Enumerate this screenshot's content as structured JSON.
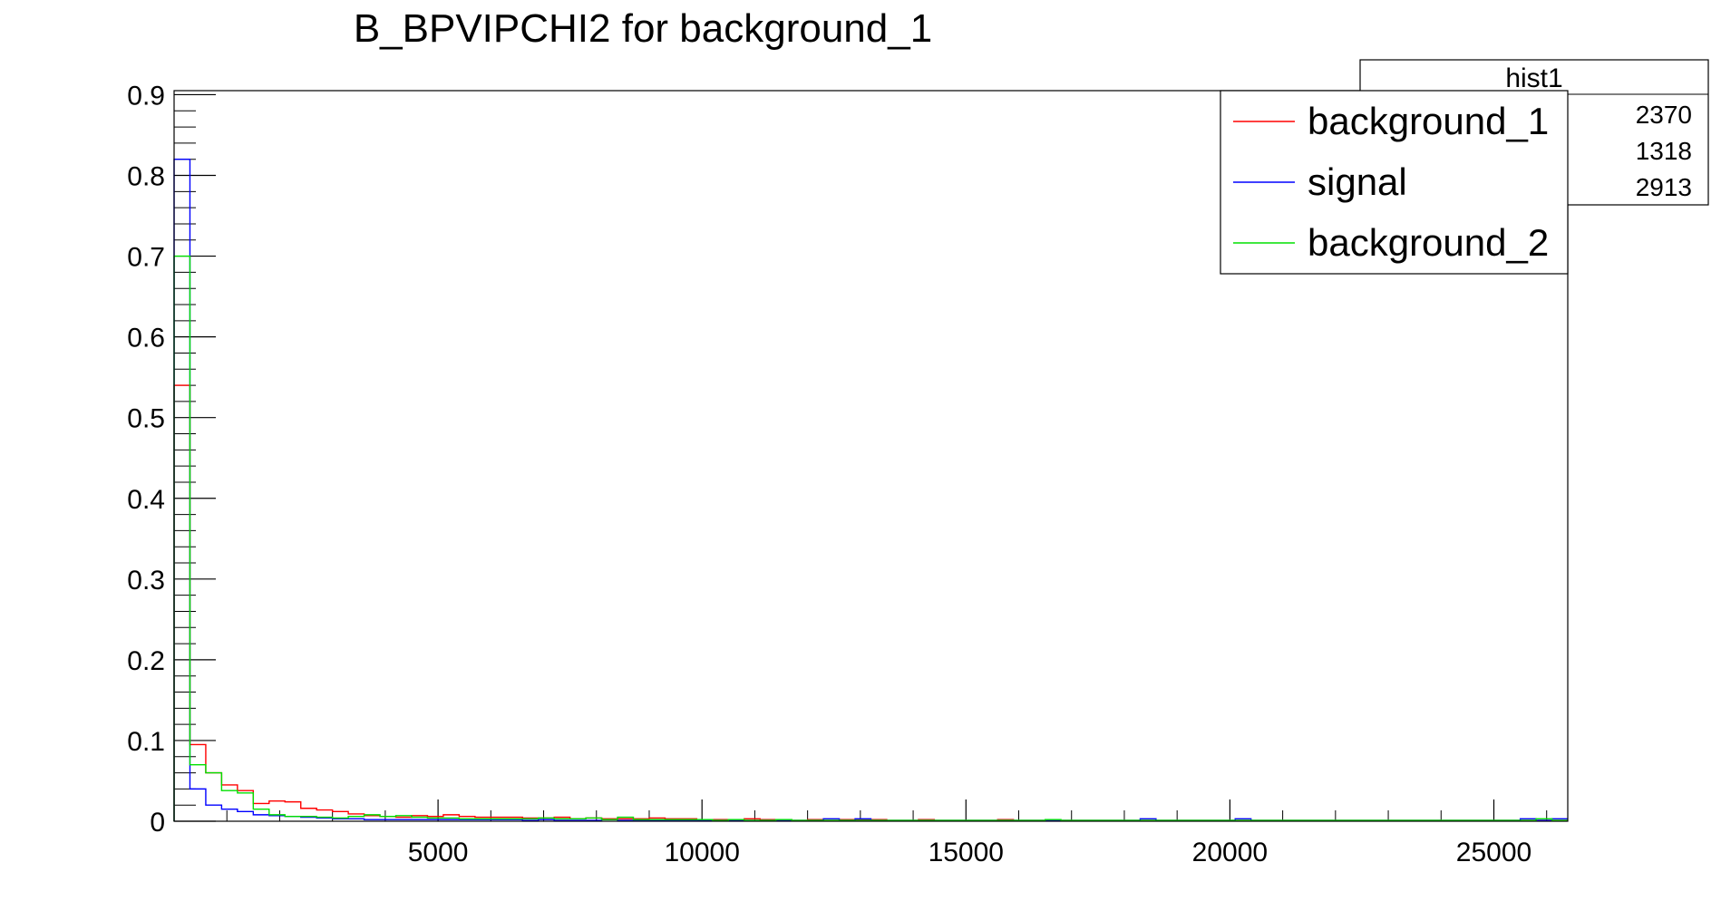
{
  "chart_data": {
    "type": "line",
    "title": "B_BPVIPCHI2 for background_1",
    "xlabel": "",
    "ylabel": "",
    "xlim": [
      0,
      26400
    ],
    "ylim": [
      0,
      0.905
    ],
    "bin_width": 300,
    "x_ticks": [
      5000,
      10000,
      15000,
      20000,
      25000
    ],
    "y_ticks": [
      0,
      0.1,
      0.2,
      0.3,
      0.4,
      0.5,
      0.6,
      0.7,
      0.8,
      0.9
    ],
    "grid": false,
    "legend_position": "top-right",
    "stats_box": {
      "title": "hist1",
      "values": [
        "2370",
        "1318",
        "2913"
      ]
    },
    "series": [
      {
        "name": "background_1",
        "color": "#ff0000",
        "values": [
          0.54,
          0.095,
          0.06,
          0.045,
          0.038,
          0.022,
          0.025,
          0.024,
          0.016,
          0.014,
          0.012,
          0.009,
          0.007,
          0.006,
          0.005,
          0.007,
          0.006,
          0.008,
          0.006,
          0.005,
          0.005,
          0.005,
          0.004,
          0.004,
          0.005,
          0.003,
          0.004,
          0.003,
          0.003,
          0.003,
          0.004,
          0.003,
          0.003,
          0.002,
          0.002,
          0.002,
          0.003,
          0.002,
          0.002,
          0.001,
          0.002,
          0.001,
          0.002,
          0.002,
          0.002,
          0.001,
          0.001,
          0.002,
          0.001,
          0.001,
          0.001,
          0.001,
          0.002,
          0.001,
          0.001,
          0.001,
          0.001,
          0.001,
          0.001,
          0.001,
          0.001,
          0.001,
          0.001,
          0.001,
          0.001,
          0.001,
          0.001,
          0.001,
          0.001,
          0.001,
          0.001,
          0.001,
          0.001,
          0.001,
          0.001,
          0.001,
          0.001,
          0.001,
          0.001,
          0.001,
          0.001,
          0.001,
          0.001,
          0.001,
          0.001,
          0.001,
          0.001,
          0.001
        ]
      },
      {
        "name": "signal",
        "color": "#0000ff",
        "values": [
          0.82,
          0.04,
          0.02,
          0.015,
          0.012,
          0.008,
          0.007,
          0.006,
          0.005,
          0.004,
          0.003,
          0.003,
          0.002,
          0.002,
          0.002,
          0.002,
          0.002,
          0.002,
          0.002,
          0.002,
          0.002,
          0.002,
          0.001,
          0.002,
          0.001,
          0.001,
          0.001,
          0.002,
          0.001,
          0.001,
          0.001,
          0.001,
          0.001,
          0.001,
          0.001,
          0.001,
          0.001,
          0.001,
          0.001,
          0.001,
          0.001,
          0.003,
          0.001,
          0.003,
          0.001,
          0.001,
          0.001,
          0.001,
          0.001,
          0.001,
          0.001,
          0.001,
          0.001,
          0.001,
          0.001,
          0.001,
          0.001,
          0.001,
          0.001,
          0.001,
          0.001,
          0.003,
          0.001,
          0.001,
          0.001,
          0.001,
          0.001,
          0.003,
          0.001,
          0.001,
          0.001,
          0.001,
          0.001,
          0.001,
          0.001,
          0.001,
          0.001,
          0.001,
          0.001,
          0.001,
          0.001,
          0.001,
          0.001,
          0.001,
          0.001,
          0.003,
          0.001,
          0.003
        ]
      },
      {
        "name": "background_2",
        "color": "#00e000",
        "values": [
          0.7,
          0.07,
          0.06,
          0.038,
          0.035,
          0.015,
          0.008,
          0.006,
          0.006,
          0.005,
          0.004,
          0.006,
          0.008,
          0.006,
          0.007,
          0.005,
          0.004,
          0.004,
          0.003,
          0.003,
          0.003,
          0.003,
          0.003,
          0.004,
          0.003,
          0.003,
          0.004,
          0.002,
          0.005,
          0.002,
          0.002,
          0.002,
          0.002,
          0.002,
          0.001,
          0.002,
          0.001,
          0.001,
          0.002,
          0.001,
          0.001,
          0.001,
          0.001,
          0.001,
          0.001,
          0.001,
          0.001,
          0.001,
          0.001,
          0.001,
          0.001,
          0.001,
          0.001,
          0.001,
          0.001,
          0.002,
          0.001,
          0.001,
          0.001,
          0.001,
          0.001,
          0.001,
          0.001,
          0.001,
          0.001,
          0.001,
          0.001,
          0.001,
          0.001,
          0.001,
          0.001,
          0.001,
          0.001,
          0.001,
          0.001,
          0.001,
          0.001,
          0.001,
          0.001,
          0.001,
          0.001,
          0.001,
          0.001,
          0.001,
          0.001,
          0.001,
          0.003,
          0.001
        ]
      }
    ]
  }
}
